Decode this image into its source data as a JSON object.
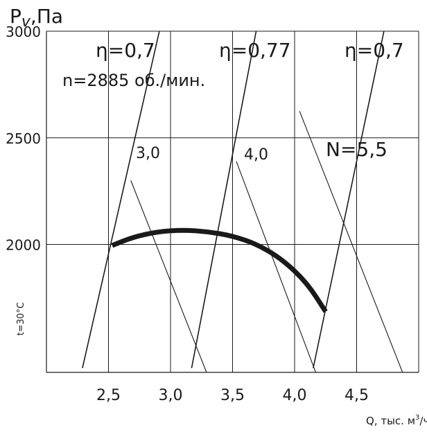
{
  "chart_data": {
    "type": "line",
    "ylabel_main": "P",
    "ylabel_sub": "v",
    "ylabel_unit": ",Па",
    "xlabel_main": "Q, тыс. м",
    "xlabel_sup": "3",
    "xlabel_tail": "/ч",
    "side_label": "t=30°C",
    "speed_note": "n=2885 об./мин.",
    "xlim": [
      2.0,
      5.0
    ],
    "ylim": [
      1400,
      3000
    ],
    "x_ticks": [
      {
        "value": 2.5,
        "label": "2,5"
      },
      {
        "value": 3.0,
        "label": "3,0"
      },
      {
        "value": 3.5,
        "label": "3,5"
      },
      {
        "value": 4.0,
        "label": "4,0"
      },
      {
        "value": 4.5,
        "label": "4,5"
      }
    ],
    "y_ticks": [
      {
        "value": 2000,
        "label": "2000"
      },
      {
        "value": 2500,
        "label": "2500"
      },
      {
        "value": 3000,
        "label": "3000"
      }
    ],
    "x_grid": [
      2.5,
      3.0,
      3.5,
      4.0,
      4.5,
      5.0
    ],
    "y_grid": [
      2000,
      2500,
      3000
    ],
    "grid": true,
    "series": [
      {
        "role": "performance-curve",
        "points": [
          [
            2.53,
            1995
          ],
          [
            2.7,
            2035
          ],
          [
            2.9,
            2060
          ],
          [
            3.1,
            2068
          ],
          [
            3.3,
            2060
          ],
          [
            3.5,
            2040
          ],
          [
            3.7,
            2000
          ],
          [
            3.9,
            1930
          ],
          [
            4.1,
            1820
          ],
          [
            4.25,
            1685
          ]
        ]
      }
    ],
    "efficiency_lines": [
      {
        "label": "η=0,7",
        "from": [
          2.29,
          1420
        ],
        "to": [
          2.91,
          3000
        ]
      },
      {
        "label": "η=0,77",
        "from": [
          3.17,
          1420
        ],
        "to": [
          3.69,
          3000
        ]
      },
      {
        "label": "η=0,7",
        "from": [
          4.15,
          1420
        ],
        "to": [
          4.72,
          3000
        ]
      }
    ],
    "power_lines": [
      {
        "label": "3,0",
        "from": [
          2.68,
          2300
        ],
        "to": [
          3.29,
          1400
        ]
      },
      {
        "label": "4,0",
        "from": [
          3.53,
          2390
        ],
        "to": [
          4.17,
          1400
        ]
      },
      {
        "label": "N=5,5",
        "from": [
          4.04,
          2625
        ],
        "to": [
          4.87,
          1400
        ]
      }
    ]
  }
}
